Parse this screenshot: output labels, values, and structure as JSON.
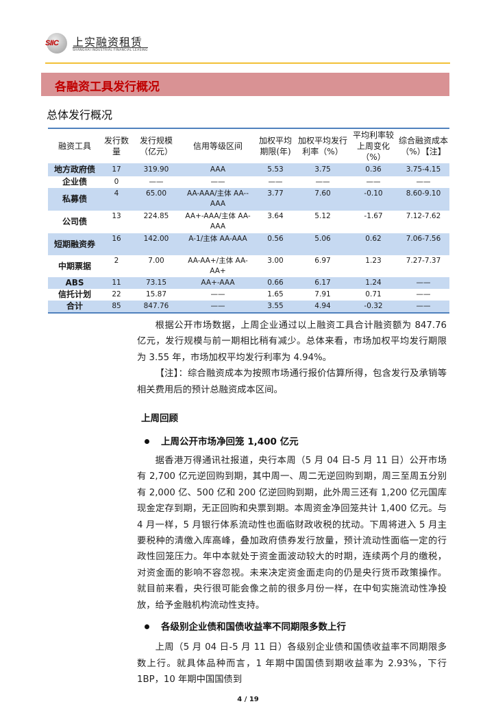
{
  "header": {
    "logo_mark": "SIIC",
    "logo_cn": "上实融资租赁",
    "logo_en": "SHANGHAI INDUSTRIAL FINANCIAL LEASING",
    "accent_color": "#f2c036"
  },
  "section": {
    "title": "各融资工具发行概况",
    "banner_color": "#d99294",
    "subtitle": "总体发行概况"
  },
  "table": {
    "headers": [
      "融资工具",
      "发行数量",
      "发行规模（亿元）",
      "信用等级区间",
      "加权平均期限(年)",
      "加权平均发行利率（%）",
      "平均利率较上周变化（%）",
      "综合融资成本（%）【注】"
    ],
    "rows": [
      [
        "地方政府债",
        "17",
        "319.90",
        "AAA",
        "5.53",
        "3.75",
        "0.36",
        "3.75-4.15"
      ],
      [
        "企业债",
        "0",
        "——",
        "——",
        "——",
        "——",
        "——",
        "——"
      ],
      [
        "私募债",
        "4",
        "65.00",
        "AA-AAA/主体 AA--AAA",
        "3.77",
        "7.60",
        "-0.10",
        "8.60-9.10"
      ],
      [
        "公司债",
        "13",
        "224.85",
        "AA+-AAA/主体 AA-AAA",
        "3.64",
        "5.12",
        "-1.67",
        "7.12-7.62"
      ],
      [
        "短期融资券",
        "16",
        "142.00",
        "A-1/主体 AA-AAA",
        "0.56",
        "5.06",
        "0.62",
        "7.06-7.56"
      ],
      [
        "中期票据",
        "2",
        "7.00",
        "AA-AA+/主体 AA-AA+",
        "3.00",
        "6.97",
        "1.23",
        "7.27-7.37"
      ],
      [
        "ABS",
        "11",
        "73.15",
        "AA+-AAA",
        "0.66",
        "6.17",
        "1.24",
        "——"
      ],
      [
        "信托计划",
        "22",
        "15.87",
        "——",
        "1.65",
        "7.91",
        "0.71",
        "——"
      ],
      [
        "合计",
        "85",
        "847.76",
        "——",
        "3.55",
        "4.94",
        "-0.32",
        "——"
      ]
    ]
  },
  "body": {
    "p1": "根据公开市场数据，上周企业通过以上融资工具合计融资额为 847.76 亿元，发行规模与前一期相比稍有减少。总体来看，市场加权平均发行期限为 3.55 年，市场加权平均发行利率为 4.94%。",
    "note": "【注】：综合融资成本为按照市场通行报价估算所得，包含发行及承销等相关费用后的预计总融资成本区间。",
    "review_heading": "上周回顾",
    "bullet1": "上周公开市场净回笼 1,400 亿元",
    "p2": "据香港万得通讯社报道，央行本周（5 月 04 日-5 月 11 日）公开市场有 2,700 亿元逆回购到期，其中周一、周二无逆回购到期，周三至周五分别有 2,000 亿、500 亿和 200 亿逆回购到期，此外周三还有 1,200 亿元国库现金定存到期，无正回购和央票到期。本周资金净回笼共计 1,400 亿元。与 4 月一样，5 月银行体系流动性也面临财政收税的扰动。下周将进入 5 月主要税种的清缴入库高峰，叠加政府债券发行放量，预计流动性面临一定的行政性回笼压力。年中本就处于资金面波动较大的时期，连续两个月的缴税，对资金面的影响不容忽视。未来决定资金面走向的仍是央行货币政策操作。就目前来看，央行很可能会像之前的很多月份一样，在中旬实施流动性净投放，给予金融机构流动性支持。",
    "bullet2": "各级别企业债和国债收益率不同期限多数上行",
    "p3": "上周（5 月 04 日-5 月 11 日）各级别企业债和国债收益率不同期限多数上行。就具体品种而言，1 年期中国国债到期收益率为 2.93%，下行 1BP，10 年期中国国债到"
  },
  "footer": {
    "page": "4 / 19"
  }
}
